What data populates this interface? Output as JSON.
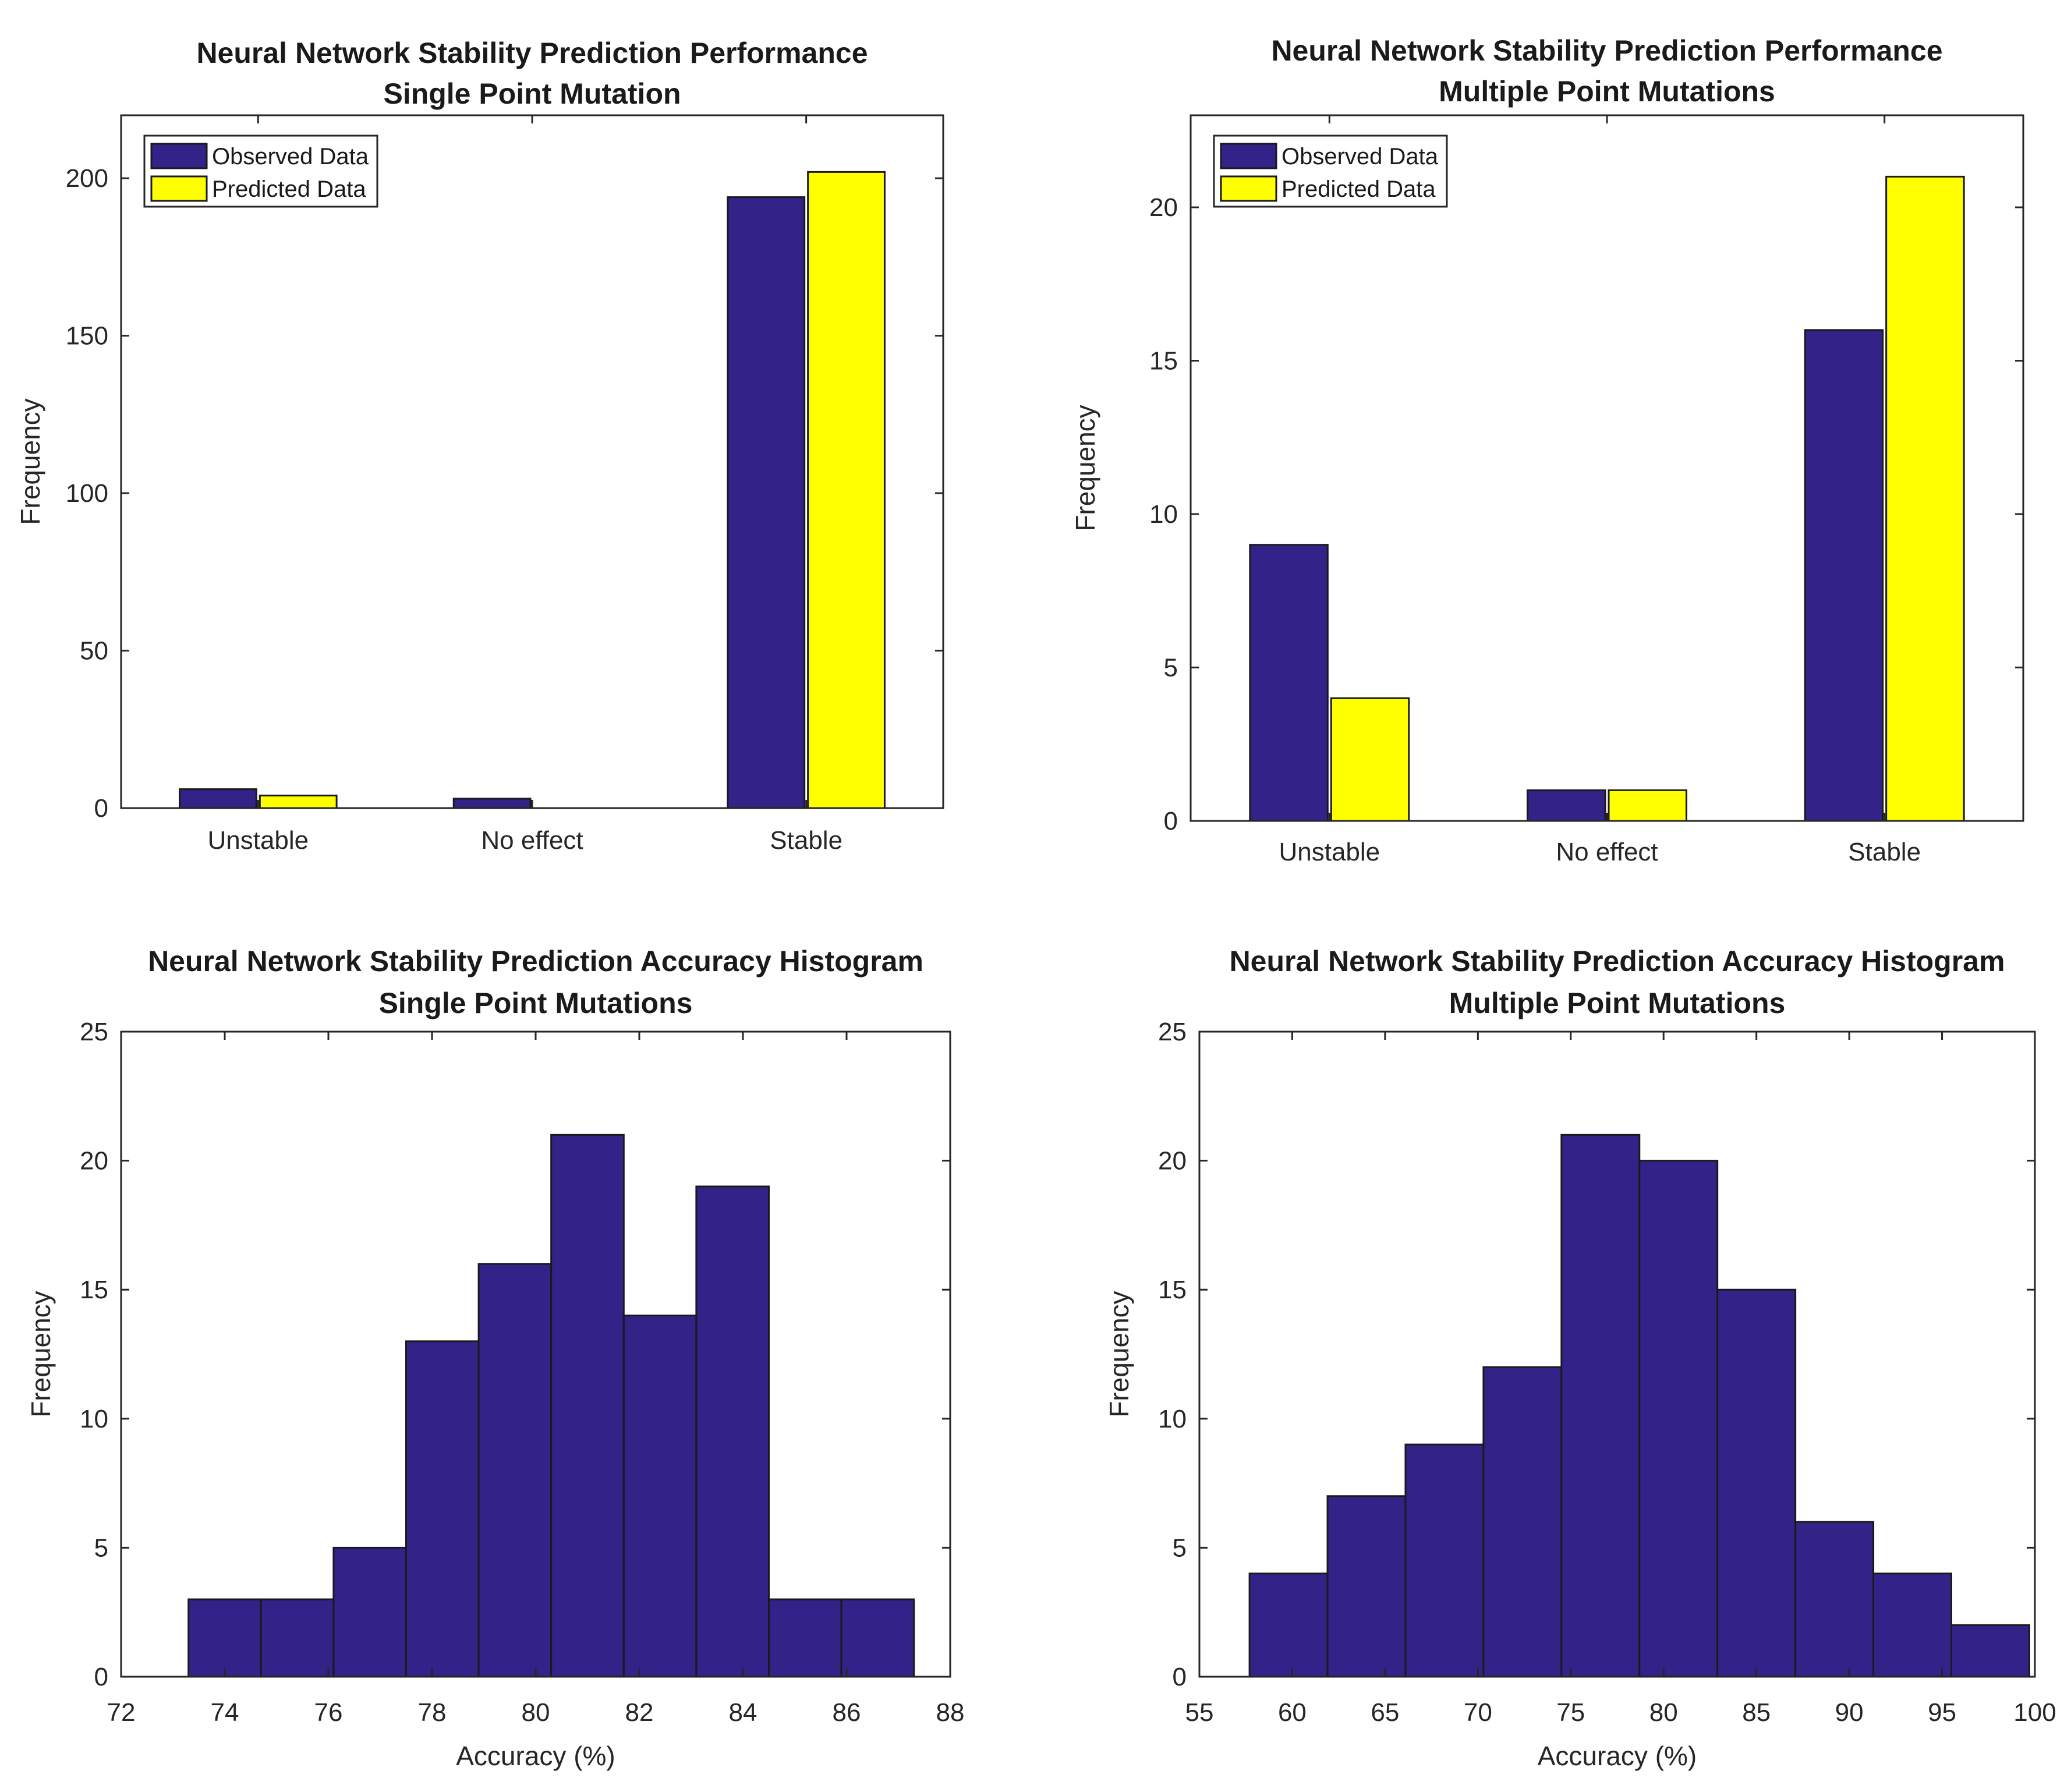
{
  "chart_data": [
    {
      "type": "bar",
      "title": [
        "Neural Network Stability Prediction Performance",
        "Single Point Mutation"
      ],
      "xlabel": "",
      "ylabel": "Frequency",
      "categories": [
        "Unstable",
        "No effect",
        "Stable"
      ],
      "series": [
        {
          "name": "Observed Data",
          "color": "#332288",
          "values": [
            6,
            3,
            194
          ]
        },
        {
          "name": "Predicted Data",
          "color": "#ffff00",
          "values": [
            4,
            0,
            202
          ]
        }
      ],
      "ylim": [
        0,
        220
      ],
      "yticks": [
        0,
        50,
        100,
        150,
        200
      ],
      "legend": "top-left",
      "grid": false
    },
    {
      "type": "bar",
      "title": [
        "Neural Network Stability Prediction Performance",
        "Multiple Point Mutations"
      ],
      "xlabel": "",
      "ylabel": "Frequency",
      "categories": [
        "Unstable",
        "No effect",
        "Stable"
      ],
      "series": [
        {
          "name": "Observed Data",
          "color": "#332288",
          "values": [
            9,
            1,
            16
          ]
        },
        {
          "name": "Predicted Data",
          "color": "#ffff00",
          "values": [
            4,
            1,
            21
          ]
        }
      ],
      "ylim": [
        0,
        23
      ],
      "yticks": [
        0,
        5,
        10,
        15,
        20
      ],
      "legend": "top-left",
      "grid": false
    },
    {
      "type": "histogram",
      "title": [
        "Neural Network Stability Prediction Accuracy Histogram",
        "Single Point Mutations"
      ],
      "xlabel": "Accuracy (%)",
      "ylabel": "Frequency",
      "bin_edges": [
        73.3,
        74.7,
        76.1,
        77.5,
        78.9,
        80.3,
        81.7,
        83.1,
        84.5,
        85.9,
        87.3
      ],
      "values": [
        3,
        3,
        5,
        13,
        16,
        21,
        14,
        19,
        3,
        3
      ],
      "xlim": [
        72,
        88
      ],
      "xticks": [
        72,
        74,
        76,
        78,
        80,
        82,
        84,
        86,
        88
      ],
      "ylim": [
        0,
        25
      ],
      "yticks": [
        0,
        5,
        10,
        15,
        20,
        25
      ],
      "color": "#332288",
      "grid": false
    },
    {
      "type": "histogram",
      "title": [
        "Neural Network Stability Prediction Accuracy Histogram",
        "Multiple Point Mutations"
      ],
      "xlabel": "Accuracy (%)",
      "ylabel": "Frequency",
      "bin_edges": [
        57.7,
        61.9,
        66.1,
        70.3,
        74.5,
        78.7,
        82.9,
        87.1,
        91.3,
        95.5,
        99.7
      ],
      "values": [
        4,
        7,
        9,
        12,
        21,
        20,
        15,
        6,
        4,
        2
      ],
      "xlim": [
        55,
        100
      ],
      "xticks": [
        55,
        60,
        65,
        70,
        75,
        80,
        85,
        90,
        95,
        100
      ],
      "ylim": [
        0,
        25
      ],
      "yticks": [
        0,
        5,
        10,
        15,
        20,
        25
      ],
      "color": "#332288",
      "grid": false
    }
  ]
}
